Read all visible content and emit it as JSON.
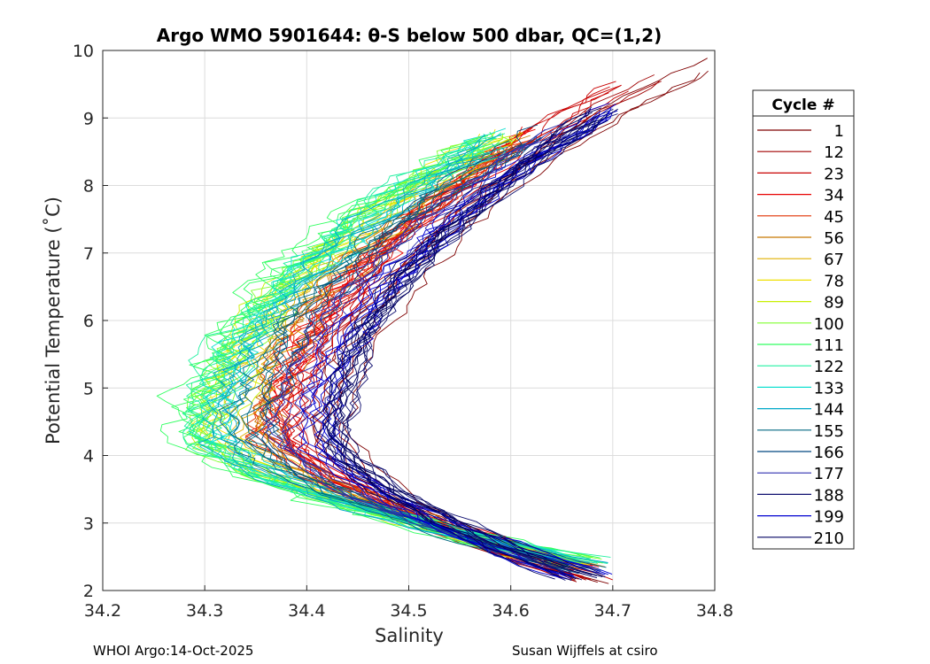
{
  "chart_data": {
    "type": "line",
    "title": "Argo WMO 5901644: θ-S below 500 dbar,  QC=(1,2)",
    "xlabel": "Salinity",
    "ylabel": "Potential Temperature (˚C)",
    "xlim": [
      34.2,
      34.8
    ],
    "ylim": [
      2,
      10
    ],
    "xticks": [
      "34.2",
      "34.3",
      "34.4",
      "34.5",
      "34.6",
      "34.7",
      "34.8"
    ],
    "yticks": [
      "2",
      "3",
      "4",
      "5",
      "6",
      "7",
      "8",
      "9",
      "10"
    ],
    "grid": true,
    "legend": {
      "title": "Cycle #",
      "placement": "right",
      "entries": [
        {
          "label": "1",
          "color": "#7f0000"
        },
        {
          "label": "12",
          "color": "#a00000"
        },
        {
          "label": "23",
          "color": "#c80000"
        },
        {
          "label": "34",
          "color": "#e80000"
        },
        {
          "label": "45",
          "color": "#e03000"
        },
        {
          "label": "56",
          "color": "#c87800"
        },
        {
          "label": "67",
          "color": "#e0b000"
        },
        {
          "label": "78",
          "color": "#f0e000"
        },
        {
          "label": "89",
          "color": "#c8f000"
        },
        {
          "label": "100",
          "color": "#80ff30"
        },
        {
          "label": "111",
          "color": "#30ff60"
        },
        {
          "label": "122",
          "color": "#20f0a0"
        },
        {
          "label": "133",
          "color": "#10e0d0"
        },
        {
          "label": "144",
          "color": "#00a8c8"
        },
        {
          "label": "155",
          "color": "#006880"
        },
        {
          "label": "166",
          "color": "#004880"
        },
        {
          "label": "177",
          "color": "#3030b0"
        },
        {
          "label": "188",
          "color": "#101070"
        },
        {
          "label": "199",
          "color": "#0000d0"
        },
        {
          "label": "210",
          "color": "#000060"
        }
      ]
    },
    "series": [
      {
        "name": "1",
        "color": "#7f0000",
        "smin": 34.43,
        "smax": 34.795,
        "tmin": 2.1,
        "tmax": 9.95,
        "noise": 0.01,
        "count": 3
      },
      {
        "name": "12",
        "color": "#a00000",
        "smin": 34.42,
        "smax": 34.735,
        "tmin": 2.12,
        "tmax": 9.7,
        "noise": 0.01,
        "count": 3
      },
      {
        "name": "23",
        "color": "#c80000",
        "smin": 34.385,
        "smax": 34.7,
        "tmin": 2.15,
        "tmax": 9.55,
        "noise": 0.012,
        "count": 6
      },
      {
        "name": "34",
        "color": "#e80000",
        "smin": 34.37,
        "smax": 34.62,
        "tmin": 2.3,
        "tmax": 8.9,
        "noise": 0.014,
        "count": 8
      },
      {
        "name": "45",
        "color": "#e03000",
        "smin": 34.36,
        "smax": 34.61,
        "tmin": 2.3,
        "tmax": 8.8,
        "noise": 0.014,
        "count": 6
      },
      {
        "name": "56",
        "color": "#c87800",
        "smin": 34.36,
        "smax": 34.6,
        "tmin": 2.3,
        "tmax": 8.8,
        "noise": 0.014,
        "count": 3
      },
      {
        "name": "67",
        "color": "#e0b000",
        "smin": 34.34,
        "smax": 34.59,
        "tmin": 2.3,
        "tmax": 8.8,
        "noise": 0.015,
        "count": 4
      },
      {
        "name": "78",
        "color": "#f0e000",
        "smin": 34.32,
        "smax": 34.59,
        "tmin": 2.35,
        "tmax": 8.9,
        "noise": 0.016,
        "count": 4
      },
      {
        "name": "89",
        "color": "#c8f000",
        "smin": 34.31,
        "smax": 34.59,
        "tmin": 2.35,
        "tmax": 8.95,
        "noise": 0.018,
        "count": 4
      },
      {
        "name": "100",
        "color": "#80ff30",
        "smin": 34.3,
        "smax": 34.58,
        "tmin": 2.4,
        "tmax": 8.9,
        "noise": 0.022,
        "count": 5
      },
      {
        "name": "111",
        "color": "#30ff60",
        "smin": 34.29,
        "smax": 34.57,
        "tmin": 2.4,
        "tmax": 8.8,
        "noise": 0.025,
        "count": 5
      },
      {
        "name": "122",
        "color": "#20f0a0",
        "smin": 34.3,
        "smax": 34.575,
        "tmin": 2.4,
        "tmax": 8.85,
        "noise": 0.02,
        "count": 5
      },
      {
        "name": "133",
        "color": "#10e0d0",
        "smin": 34.31,
        "smax": 34.58,
        "tmin": 2.4,
        "tmax": 8.85,
        "noise": 0.018,
        "count": 5
      },
      {
        "name": "144",
        "color": "#00a8c8",
        "smin": 34.32,
        "smax": 34.59,
        "tmin": 2.35,
        "tmax": 8.8,
        "noise": 0.016,
        "count": 5
      },
      {
        "name": "155",
        "color": "#006880",
        "smin": 34.34,
        "smax": 34.61,
        "tmin": 2.3,
        "tmax": 8.8,
        "noise": 0.014,
        "count": 4
      },
      {
        "name": "166",
        "color": "#004880",
        "smin": 34.36,
        "smax": 34.63,
        "tmin": 2.25,
        "tmax": 8.9,
        "noise": 0.012,
        "count": 4
      },
      {
        "name": "177",
        "color": "#3030b0",
        "smin": 34.38,
        "smax": 34.65,
        "tmin": 2.2,
        "tmax": 9.0,
        "noise": 0.012,
        "count": 5
      },
      {
        "name": "188",
        "color": "#101070",
        "smin": 34.43,
        "smax": 34.69,
        "tmin": 2.15,
        "tmax": 9.2,
        "noise": 0.01,
        "count": 6
      },
      {
        "name": "199",
        "color": "#0000d0",
        "smin": 34.41,
        "smax": 34.7,
        "tmin": 2.15,
        "tmax": 9.3,
        "noise": 0.012,
        "count": 8
      },
      {
        "name": "210",
        "color": "#000060",
        "smin": 34.43,
        "smax": 34.69,
        "tmin": 2.15,
        "tmax": 9.2,
        "noise": 0.01,
        "count": 8
      }
    ]
  },
  "footer": {
    "left": "WHOI Argo:14-Oct-2025",
    "right": "Susan Wijffels at csiro"
  }
}
